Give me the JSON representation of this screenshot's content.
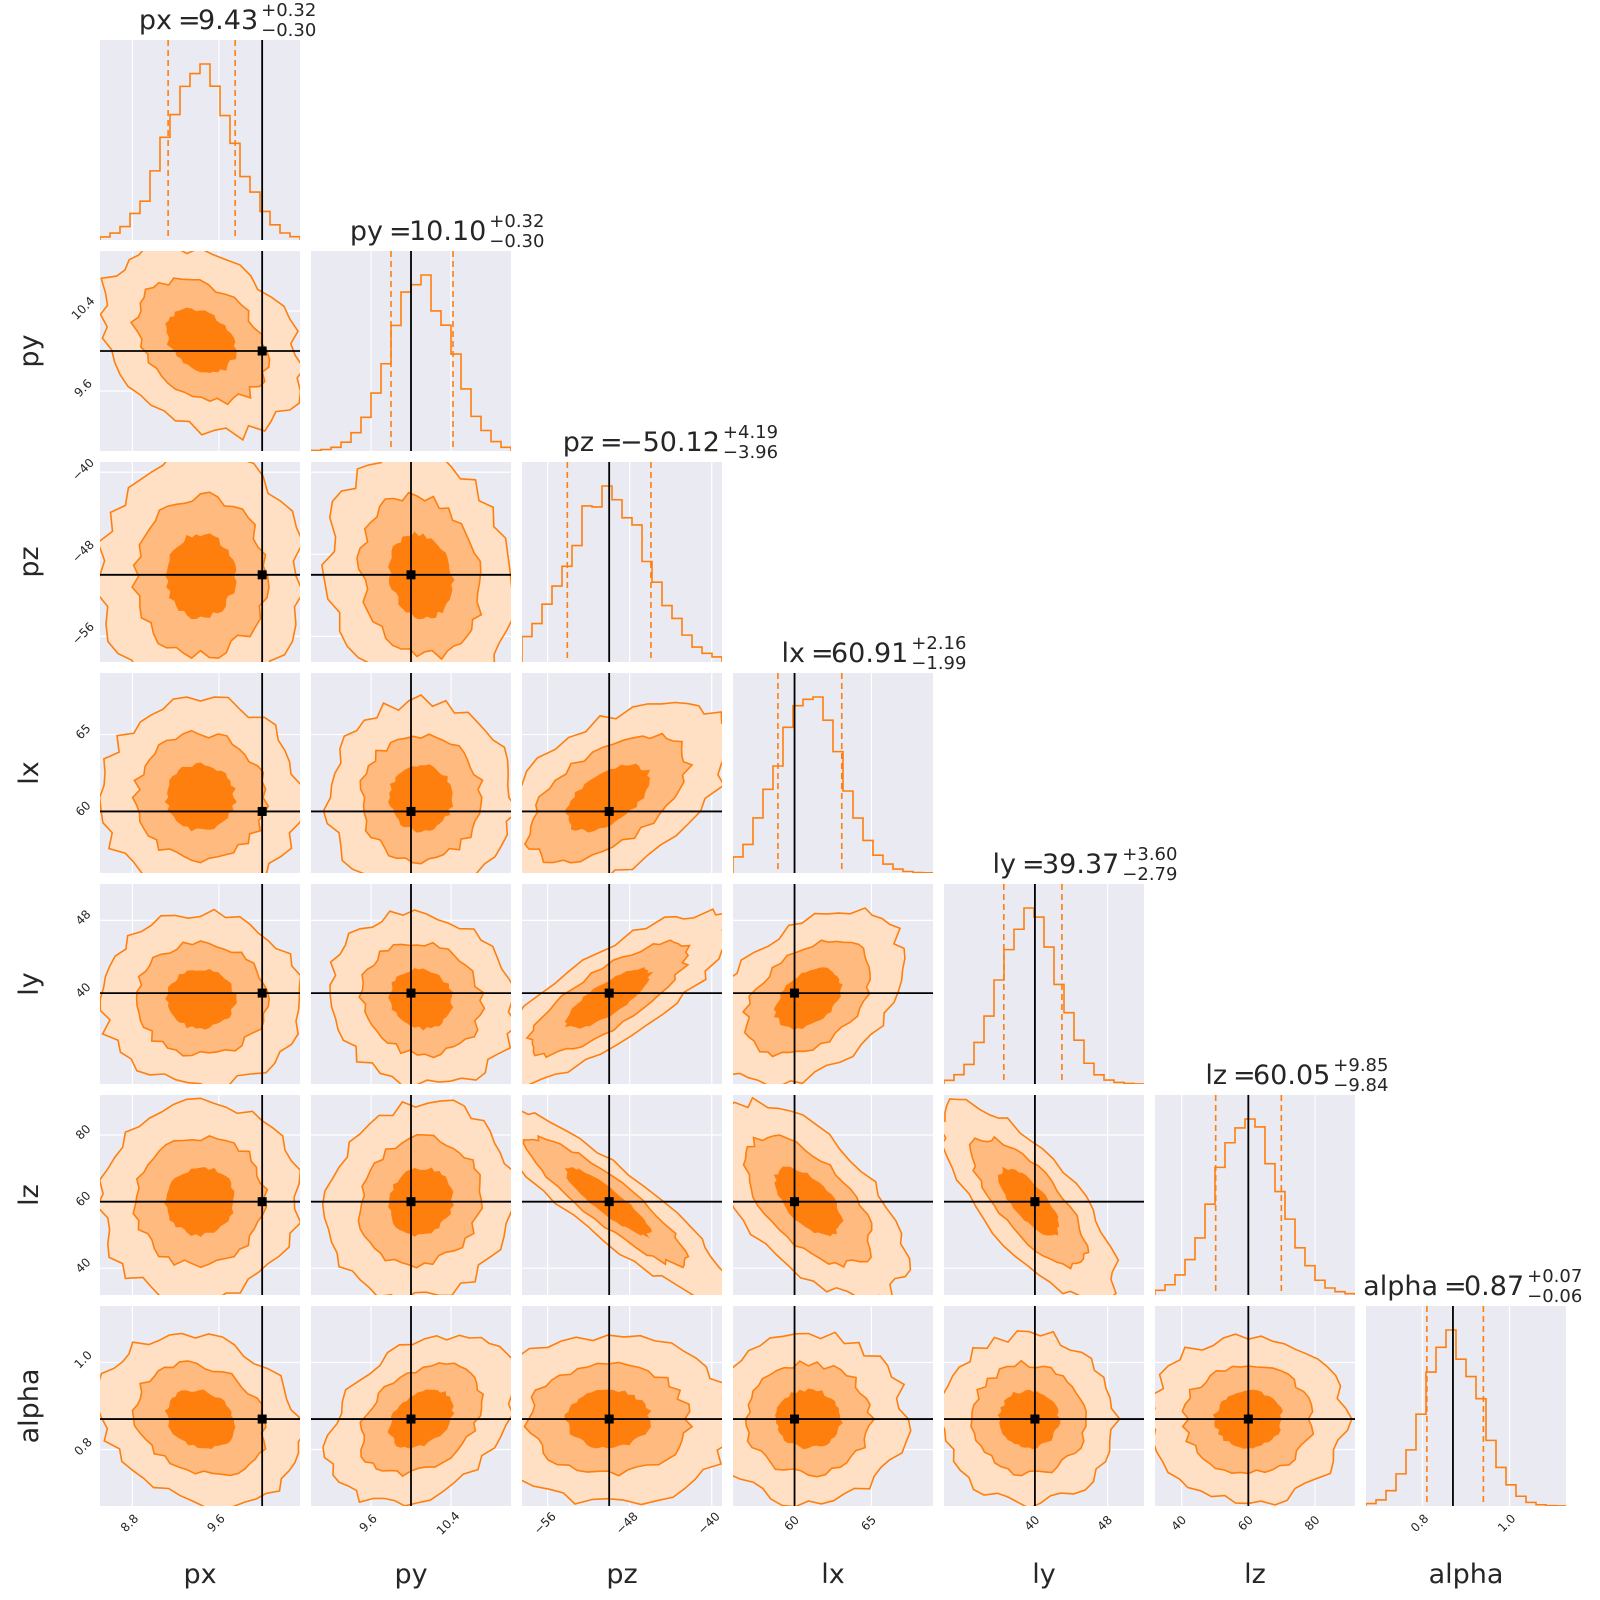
{
  "chart_data": {
    "type": "corner",
    "parameters": [
      "px",
      "py",
      "pz",
      "lx",
      "ly",
      "lz",
      "alpha"
    ],
    "axis_labels": [
      "px",
      "py",
      "pz",
      "lx",
      "ly",
      "lz",
      "alpha"
    ],
    "titles": [
      {
        "param": "px",
        "median": "9.43",
        "plus": "+0.32",
        "minus": "−0.30"
      },
      {
        "param": "py",
        "median": "10.10",
        "plus": "+0.32",
        "minus": "−0.30"
      },
      {
        "param": "pz",
        "median": "−50.12",
        "plus": "+4.19",
        "minus": "−3.96"
      },
      {
        "param": "lx",
        "median": "60.91",
        "plus": "+2.16",
        "minus": "−1.99"
      },
      {
        "param": "ly",
        "median": "39.37",
        "plus": "+3.60",
        "minus": "−2.79"
      },
      {
        "param": "lz",
        "median": "60.05",
        "plus": "+9.85",
        "minus": "−9.84"
      },
      {
        "param": "alpha",
        "median": "0.87",
        "plus": "+0.07",
        "minus": "−0.06"
      }
    ],
    "medians": [
      9.43,
      10.1,
      -50.12,
      60.91,
      39.37,
      60.05,
      0.87
    ],
    "q_low": [
      9.13,
      9.8,
      -54.08,
      58.92,
      36.58,
      50.21,
      0.81
    ],
    "q_high": [
      9.75,
      10.42,
      -45.93,
      63.07,
      42.97,
      69.9,
      0.94
    ],
    "truths": [
      10.0,
      10.0,
      -50.0,
      60.0,
      40.0,
      60.0,
      0.87
    ],
    "ranges": [
      [
        8.5,
        10.35
      ],
      [
        9.0,
        11.0
      ],
      [
        -58.5,
        -39.0
      ],
      [
        56.0,
        69.0
      ],
      [
        30.0,
        52.0
      ],
      [
        32.0,
        92.0
      ],
      [
        0.67,
        1.13
      ]
    ],
    "ticks": [
      [
        8.8,
        9.6
      ],
      [
        9.6,
        10.4
      ],
      [
        -56,
        -48,
        -40
      ],
      [
        60,
        65
      ],
      [
        40,
        48
      ],
      [
        40,
        60,
        80
      ],
      [
        0.8,
        1.0
      ]
    ],
    "tick_labels": [
      [
        "8.8",
        "9.6"
      ],
      [
        "9.6",
        "10.4"
      ],
      [
        "−56",
        "−48",
        "−40"
      ],
      [
        "60",
        "65"
      ],
      [
        "40",
        "48"
      ],
      [
        "40",
        "60",
        "80"
      ],
      [
        "0.8",
        "1.0"
      ]
    ],
    "stds": [
      0.31,
      0.31,
      4.0,
      2.1,
      3.2,
      9.8,
      0.065
    ],
    "correlations": [
      [
        "px",
        "py",
        -0.3
      ],
      [
        "px",
        "pz",
        0.0
      ],
      [
        "px",
        "lx",
        0.0
      ],
      [
        "px",
        "ly",
        0.0
      ],
      [
        "px",
        "lz",
        0.05
      ],
      [
        "px",
        "alpha",
        -0.2
      ],
      [
        "py",
        "pz",
        -0.15
      ],
      [
        "py",
        "lx",
        0.0
      ],
      [
        "py",
        "ly",
        -0.1
      ],
      [
        "py",
        "lz",
        0.1
      ],
      [
        "py",
        "alpha",
        0.35
      ],
      [
        "pz",
        "lx",
        0.55
      ],
      [
        "pz",
        "ly",
        0.8
      ],
      [
        "pz",
        "lz",
        -0.9
      ],
      [
        "pz",
        "alpha",
        0.0
      ],
      [
        "lx",
        "ly",
        0.4
      ],
      [
        "lx",
        "lz",
        -0.6
      ],
      [
        "lx",
        "alpha",
        0.0
      ],
      [
        "ly",
        "lz",
        -0.75
      ],
      [
        "ly",
        "alpha",
        0.0
      ],
      [
        "lz",
        "alpha",
        0.0
      ]
    ],
    "contour_levels": [
      "0.39",
      "0.86",
      "0.99"
    ],
    "histogram_bins": 20,
    "grid": true
  },
  "colors": {
    "series": "#ff7f0e",
    "fill_outer": "#ffe0c4",
    "fill_mid": "#ffba80",
    "fill_inner": "#ff7f0e",
    "truth": "#000000",
    "panel_background": "#eaeaf2"
  }
}
